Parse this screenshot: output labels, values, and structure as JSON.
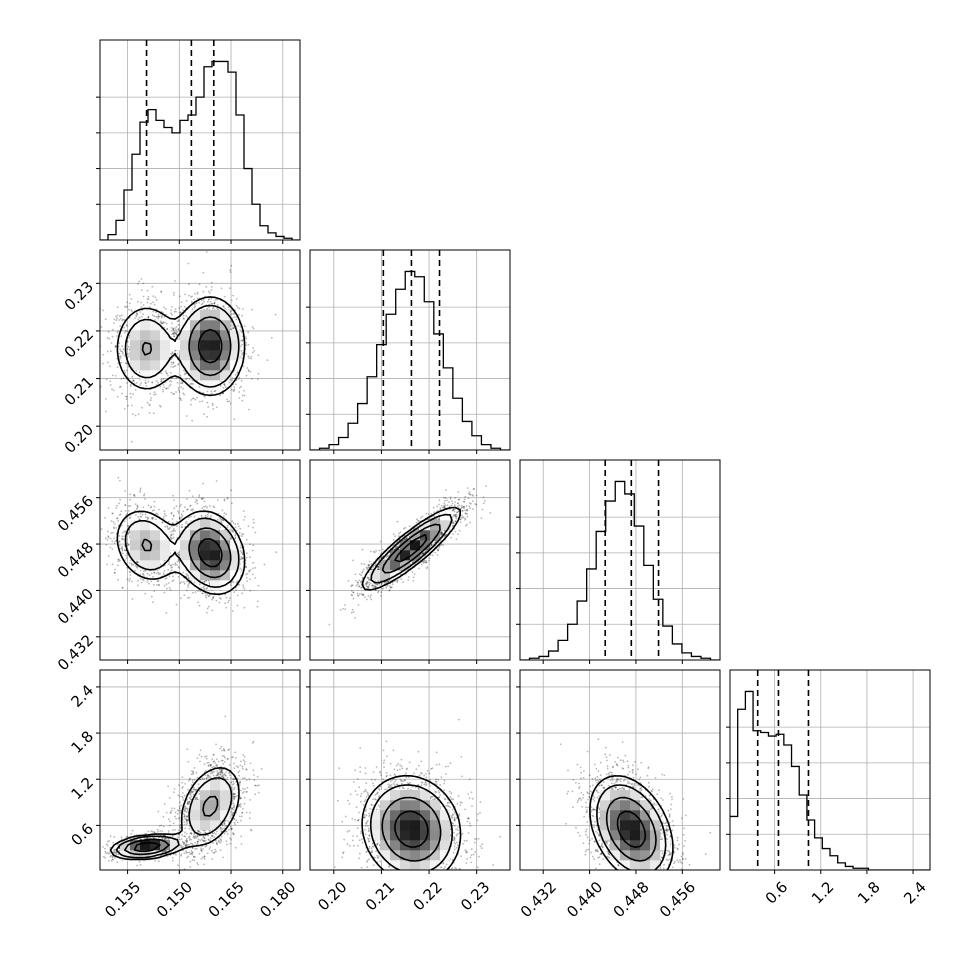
{
  "chart_data": {
    "type": "corner",
    "grid": true,
    "colors": {
      "line": "#000000",
      "grid": "#b0b0b0",
      "scatter": "#000000",
      "heat_dark": "#000000"
    },
    "params": [
      {
        "range": [
          0.127,
          0.185
        ],
        "ticks": [
          0.135,
          0.15,
          0.165,
          0.18
        ],
        "tick_labels": [
          "0.135",
          "0.150",
          "0.165",
          "0.180"
        ],
        "quantiles": [
          0.1405,
          0.1535,
          0.16
        ]
      },
      {
        "range": [
          0.195,
          0.237
        ],
        "ticks": [
          0.2,
          0.21,
          0.22,
          0.23
        ],
        "tick_labels": [
          "0.20",
          "0.21",
          "0.22",
          "0.23"
        ],
        "quantiles": [
          0.2104,
          0.2163,
          0.2222
        ]
      },
      {
        "range": [
          0.428,
          0.4625
        ],
        "ticks": [
          0.432,
          0.44,
          0.448,
          0.456
        ],
        "tick_labels": [
          "0.432",
          "0.440",
          "0.448",
          "0.456"
        ],
        "quantiles": [
          0.4427,
          0.4472,
          0.4519
        ]
      },
      {
        "range": [
          0.02,
          2.62
        ],
        "ticks": [
          0.6,
          1.2,
          1.8,
          2.4
        ],
        "tick_labels": [
          "0.6",
          "1.2",
          "1.8",
          "2.4"
        ],
        "quantiles": [
          0.38,
          0.65,
          1.04
        ]
      }
    ],
    "histograms": [
      [
        0.0,
        0.03,
        0.11,
        0.28,
        0.48,
        0.66,
        0.73,
        0.67,
        0.63,
        0.6,
        0.67,
        0.7,
        0.8,
        0.97,
        1.0,
        1.0,
        0.94,
        0.7,
        0.4,
        0.2,
        0.08,
        0.04,
        0.02,
        0.01,
        0.0
      ],
      [
        0.0,
        0.01,
        0.03,
        0.07,
        0.15,
        0.26,
        0.41,
        0.59,
        0.76,
        0.9,
        1.0,
        0.97,
        0.83,
        0.65,
        0.46,
        0.29,
        0.16,
        0.08,
        0.03,
        0.01,
        0.0
      ],
      [
        0.0,
        0.01,
        0.02,
        0.05,
        0.11,
        0.2,
        0.33,
        0.51,
        0.72,
        0.89,
        1.0,
        0.93,
        0.75,
        0.53,
        0.34,
        0.19,
        0.09,
        0.04,
        0.02,
        0.01,
        0.0
      ],
      [
        0.3,
        0.9,
        1.0,
        0.78,
        0.77,
        0.75,
        0.76,
        0.7,
        0.58,
        0.42,
        0.28,
        0.18,
        0.12,
        0.08,
        0.04,
        0.02,
        0.01,
        0.01,
        0.0,
        0.0,
        0.0,
        0.0,
        0.0,
        0.0,
        0.0,
        0.0
      ]
    ],
    "hist_ylim_factor": 1.12,
    "pair_components": {
      "1-0": [
        {
          "w": 0.35,
          "mx": [
            0.1405,
            0.2163
          ],
          "sd": [
            0.0052,
            0.0052
          ],
          "rho": 0.0
        },
        {
          "w": 0.65,
          "mx": [
            0.159,
            0.2168
          ],
          "sd": [
            0.005,
            0.0052
          ],
          "rho": 0.0
        }
      ],
      "2-0": [
        {
          "w": 0.35,
          "mx": [
            0.1405,
            0.4478
          ],
          "sd": [
            0.0052,
            0.0036
          ],
          "rho": -0.2
        },
        {
          "w": 0.65,
          "mx": [
            0.159,
            0.4465
          ],
          "sd": [
            0.005,
            0.0036
          ],
          "rho": -0.2
        }
      ],
      "2-1": [
        {
          "w": 1.0,
          "mx": [
            0.2163,
            0.4472
          ],
          "sd": [
            0.0052,
            0.0036
          ],
          "rho": 0.88
        }
      ],
      "3-0": [
        {
          "w": 0.35,
          "mx": [
            0.1405,
            0.32
          ],
          "sd": [
            0.0052,
            0.08
          ],
          "rho": 0.3
        },
        {
          "w": 0.65,
          "mx": [
            0.159,
            0.85
          ],
          "sd": [
            0.005,
            0.3
          ],
          "rho": 0.35
        }
      ],
      "3-1": [
        {
          "w": 1.0,
          "mx": [
            0.2163,
            0.55
          ],
          "sd": [
            0.0052,
            0.35
          ],
          "rho": -0.1
        }
      ],
      "3-2": [
        {
          "w": 1.0,
          "mx": [
            0.4472,
            0.55
          ],
          "sd": [
            0.0036,
            0.35
          ],
          "rho": -0.35
        }
      ]
    }
  }
}
